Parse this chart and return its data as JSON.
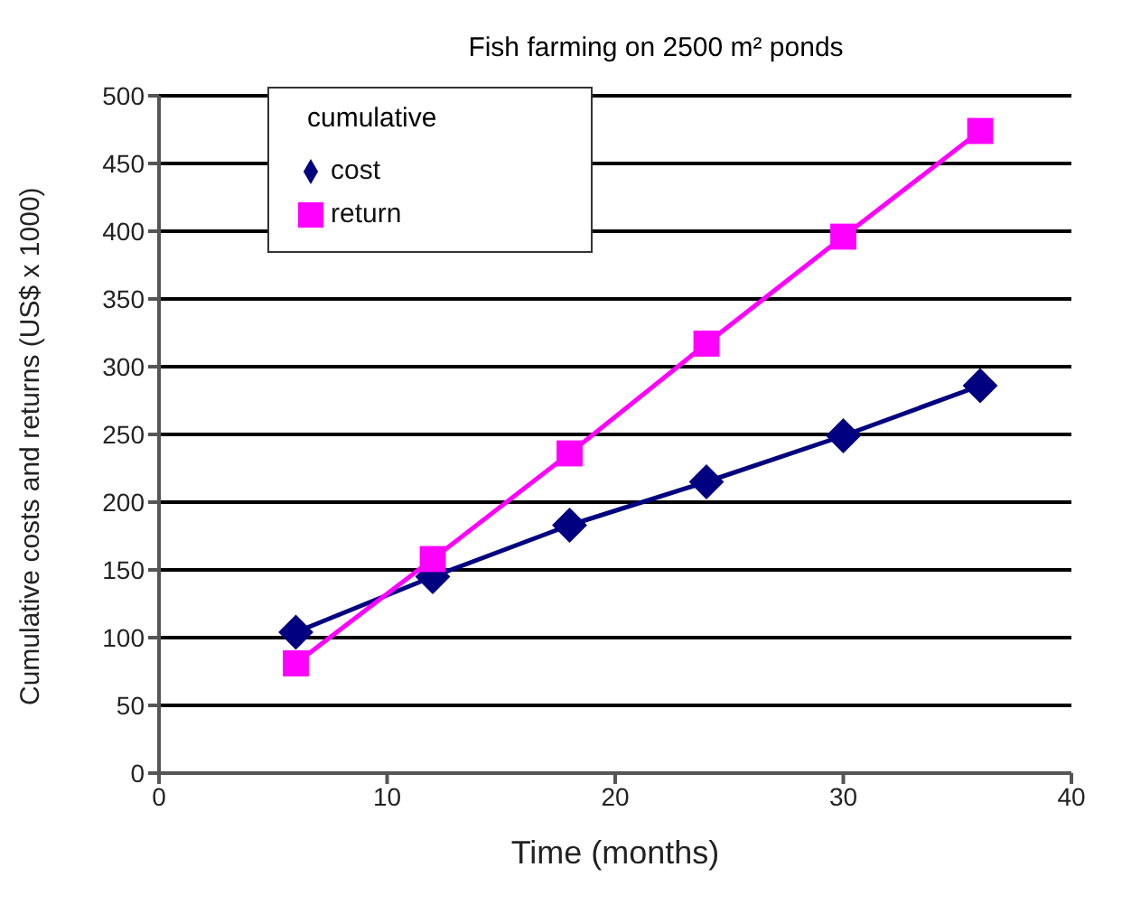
{
  "chart_data": {
    "type": "line",
    "title": "Fish farming on 2500 m² ponds",
    "xlabel": "Time (months)",
    "ylabel": "Cumulative costs and returns (US$ x 1000)",
    "legend_title": "cumulative",
    "x": [
      6,
      12,
      18,
      24,
      30,
      36
    ],
    "series": [
      {
        "name": "cost",
        "color": "#000080",
        "marker": "diamond",
        "values": [
          104,
          145,
          183,
          215,
          249,
          286
        ]
      },
      {
        "name": "return",
        "color": "#ff00ff",
        "marker": "square",
        "values": [
          81,
          158,
          236,
          317,
          396,
          474
        ]
      }
    ],
    "xlim": [
      0,
      40
    ],
    "xticks": [
      0,
      10,
      20,
      30,
      40
    ],
    "ylim": [
      0,
      500
    ],
    "yticks": [
      0,
      50,
      100,
      150,
      200,
      250,
      300,
      350,
      400,
      450,
      500
    ],
    "grid": "y",
    "legend": "top left"
  }
}
